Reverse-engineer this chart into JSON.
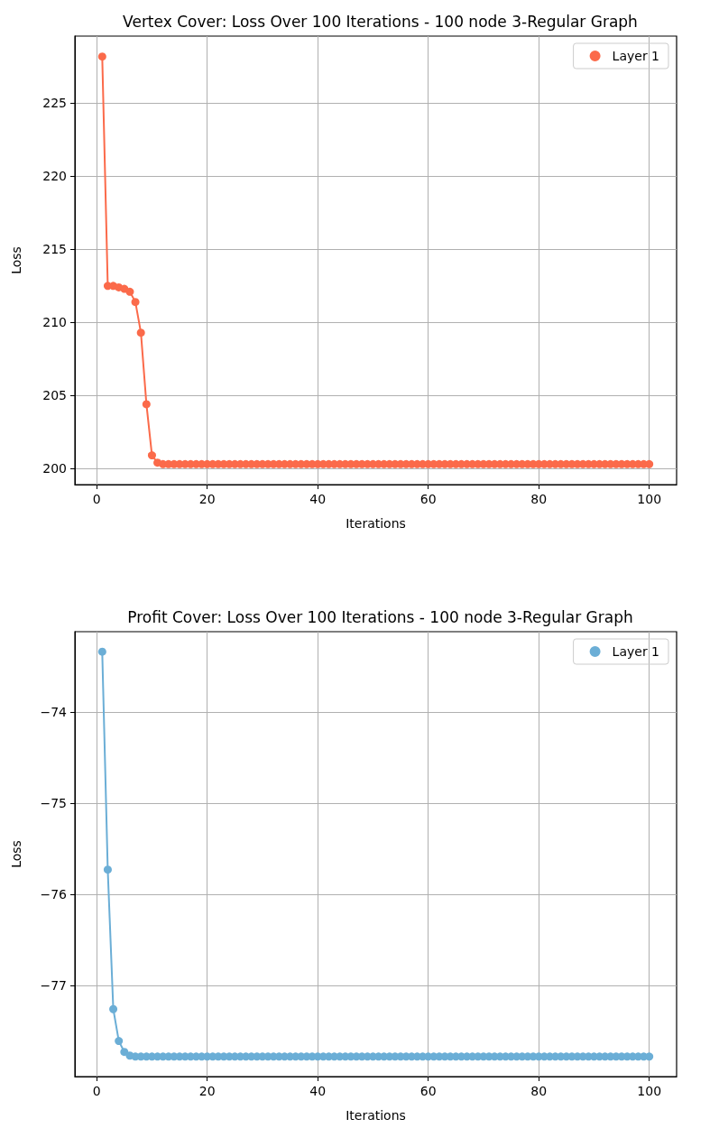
{
  "chart_data": [
    {
      "type": "line",
      "title": "Vertex Cover: Loss Over 100 Iterations - 100 node 3-Regular Graph",
      "xlabel": "Iterations",
      "ylabel": "Loss",
      "grid": true,
      "legend": "top right",
      "marker": "circle",
      "line_style": "solid",
      "xlim": [
        -3.95,
        104.95
      ],
      "xticks": [
        0,
        20,
        40,
        60,
        80,
        100
      ],
      "ylim": [
        198.9,
        229.6
      ],
      "yticks": [
        200,
        205,
        210,
        215,
        220,
        225
      ],
      "x": [
        1,
        2,
        3,
        4,
        5,
        6,
        7,
        8,
        9,
        10,
        11,
        12,
        13,
        14,
        15,
        16,
        17,
        18,
        19,
        20,
        21,
        22,
        23,
        24,
        25,
        26,
        27,
        28,
        29,
        30,
        31,
        32,
        33,
        34,
        35,
        36,
        37,
        38,
        39,
        40,
        41,
        42,
        43,
        44,
        45,
        46,
        47,
        48,
        49,
        50,
        51,
        52,
        53,
        54,
        55,
        56,
        57,
        58,
        59,
        60,
        61,
        62,
        63,
        64,
        65,
        66,
        67,
        68,
        69,
        70,
        71,
        72,
        73,
        74,
        75,
        76,
        77,
        78,
        79,
        80,
        81,
        82,
        83,
        84,
        85,
        86,
        87,
        88,
        89,
        90,
        91,
        92,
        93,
        94,
        95,
        96,
        97,
        98,
        99,
        100
      ],
      "series": [
        {
          "name": "Layer 1",
          "color": "#fb6a4a",
          "values": [
            228.2,
            212.5,
            212.5,
            212.4,
            212.3,
            212.1,
            211.4,
            209.3,
            204.4,
            200.9,
            200.4,
            200.3,
            200.3,
            200.3,
            200.3,
            200.3,
            200.3,
            200.3,
            200.3,
            200.3,
            200.3,
            200.3,
            200.3,
            200.3,
            200.3,
            200.3,
            200.3,
            200.3,
            200.3,
            200.3,
            200.3,
            200.3,
            200.3,
            200.3,
            200.3,
            200.3,
            200.3,
            200.3,
            200.3,
            200.3,
            200.3,
            200.3,
            200.3,
            200.3,
            200.3,
            200.3,
            200.3,
            200.3,
            200.3,
            200.3,
            200.3,
            200.3,
            200.3,
            200.3,
            200.3,
            200.3,
            200.3,
            200.3,
            200.3,
            200.3,
            200.3,
            200.3,
            200.3,
            200.3,
            200.3,
            200.3,
            200.3,
            200.3,
            200.3,
            200.3,
            200.3,
            200.3,
            200.3,
            200.3,
            200.3,
            200.3,
            200.3,
            200.3,
            200.3,
            200.3,
            200.3,
            200.3,
            200.3,
            200.3,
            200.3,
            200.3,
            200.3,
            200.3,
            200.3,
            200.3,
            200.3,
            200.3,
            200.3,
            200.3,
            200.3,
            200.3,
            200.3,
            200.3,
            200.3,
            200.3
          ]
        }
      ]
    },
    {
      "type": "line",
      "title": "Profit Cover: Loss Over 100 Iterations - 100 node 3-Regular Graph",
      "xlabel": "Iterations",
      "ylabel": "Loss",
      "grid": true,
      "legend": "top right",
      "marker": "circle",
      "line_style": "solid",
      "xlim": [
        -3.95,
        104.95
      ],
      "xticks": [
        0,
        20,
        40,
        60,
        80,
        100
      ],
      "ylim": [
        -78.0,
        -73.12
      ],
      "yticks": [
        {
          "value": -77,
          "label": "−77"
        },
        {
          "value": -76,
          "label": "−76"
        },
        {
          "value": -75,
          "label": "−75"
        },
        {
          "value": -74,
          "label": "−74"
        }
      ],
      "x": [
        1,
        2,
        3,
        4,
        5,
        6,
        7,
        8,
        9,
        10,
        11,
        12,
        13,
        14,
        15,
        16,
        17,
        18,
        19,
        20,
        21,
        22,
        23,
        24,
        25,
        26,
        27,
        28,
        29,
        30,
        31,
        32,
        33,
        34,
        35,
        36,
        37,
        38,
        39,
        40,
        41,
        42,
        43,
        44,
        45,
        46,
        47,
        48,
        49,
        50,
        51,
        52,
        53,
        54,
        55,
        56,
        57,
        58,
        59,
        60,
        61,
        62,
        63,
        64,
        65,
        66,
        67,
        68,
        69,
        70,
        71,
        72,
        73,
        74,
        75,
        76,
        77,
        78,
        79,
        80,
        81,
        82,
        83,
        84,
        85,
        86,
        87,
        88,
        89,
        90,
        91,
        92,
        93,
        94,
        95,
        96,
        97,
        98,
        99,
        100
      ],
      "series": [
        {
          "name": "Layer 1",
          "color": "#6baed6",
          "values": [
            -73.34,
            -75.73,
            -77.26,
            -77.61,
            -77.73,
            -77.77,
            -77.78,
            -77.78,
            -77.78,
            -77.78,
            -77.78,
            -77.78,
            -77.78,
            -77.78,
            -77.78,
            -77.78,
            -77.78,
            -77.78,
            -77.78,
            -77.78,
            -77.78,
            -77.78,
            -77.78,
            -77.78,
            -77.78,
            -77.78,
            -77.78,
            -77.78,
            -77.78,
            -77.78,
            -77.78,
            -77.78,
            -77.78,
            -77.78,
            -77.78,
            -77.78,
            -77.78,
            -77.78,
            -77.78,
            -77.78,
            -77.78,
            -77.78,
            -77.78,
            -77.78,
            -77.78,
            -77.78,
            -77.78,
            -77.78,
            -77.78,
            -77.78,
            -77.78,
            -77.78,
            -77.78,
            -77.78,
            -77.78,
            -77.78,
            -77.78,
            -77.78,
            -77.78,
            -77.78,
            -77.78,
            -77.78,
            -77.78,
            -77.78,
            -77.78,
            -77.78,
            -77.78,
            -77.78,
            -77.78,
            -77.78,
            -77.78,
            -77.78,
            -77.78,
            -77.78,
            -77.78,
            -77.78,
            -77.78,
            -77.78,
            -77.78,
            -77.78,
            -77.78,
            -77.78,
            -77.78,
            -77.78,
            -77.78,
            -77.78,
            -77.78,
            -77.78,
            -77.78,
            -77.78,
            -77.78,
            -77.78,
            -77.78,
            -77.78,
            -77.78,
            -77.78,
            -77.78,
            -77.78,
            -77.78,
            -77.78
          ]
        }
      ]
    }
  ]
}
